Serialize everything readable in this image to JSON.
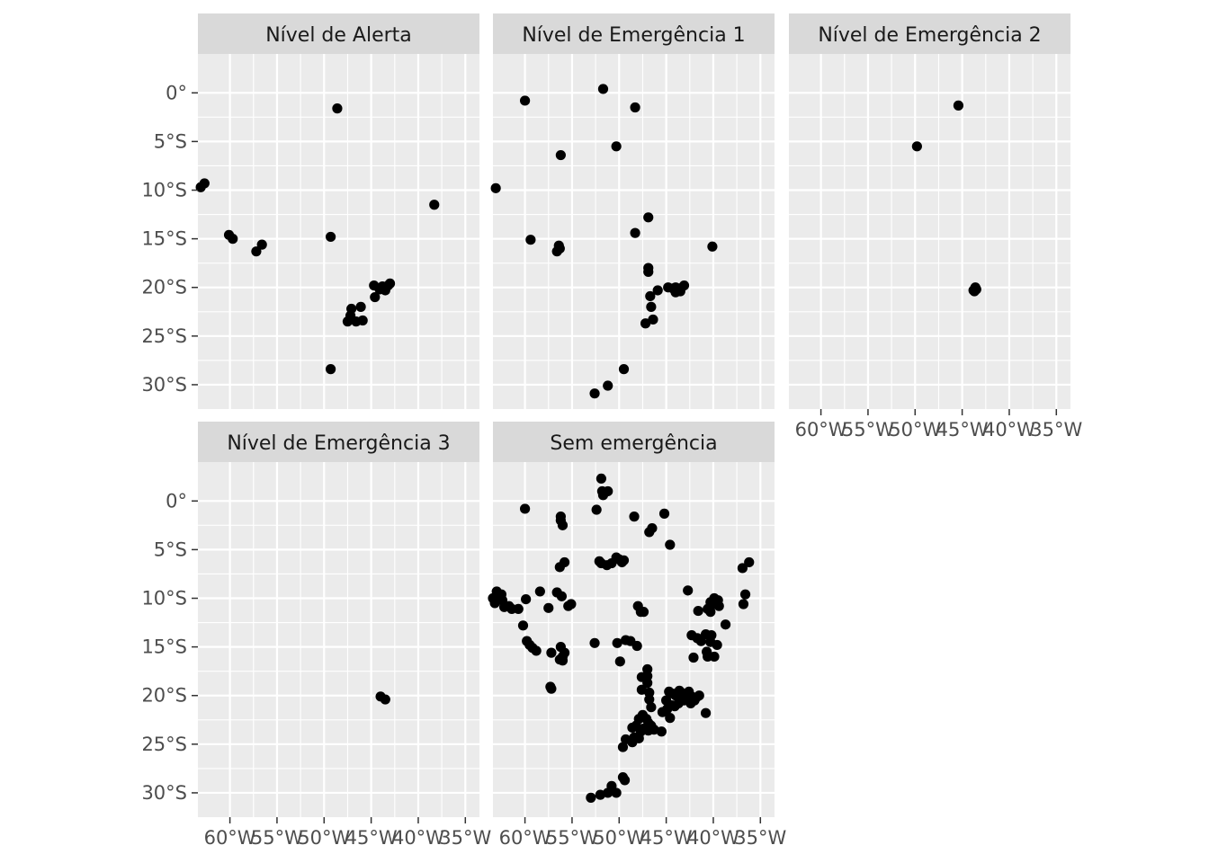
{
  "chart_data": {
    "type": "scatter",
    "facet_by": "alert level",
    "layout": "2 rows x 3 columns, shared axes",
    "x_axis": {
      "unit": "longitude",
      "range": [
        -63.4,
        -33.5
      ],
      "ticks": [
        -60,
        -55,
        -50,
        -45,
        -40,
        -35
      ],
      "tick_labels": [
        "60°W",
        "55°W",
        "50°W",
        "45°W",
        "40°W",
        "35°W"
      ]
    },
    "y_axis": {
      "unit": "latitude",
      "range": [
        -32.5,
        4.0
      ],
      "ticks": [
        0,
        -5,
        -10,
        -15,
        -20,
        -25,
        -30
      ],
      "tick_labels": [
        "0°",
        "5°S",
        "10°S",
        "15°S",
        "20°S",
        "25°S",
        "30°S"
      ]
    },
    "grid": true,
    "legend": "none",
    "colors": {
      "panel_bg": "#ebebeb",
      "grid": "#ffffff",
      "strip_bg": "#d9d9d9",
      "points": "#000000",
      "tick_text": "#4d4d4d",
      "strip_text": "#1a1a1a"
    },
    "panels": [
      {
        "label": "Nível de Alerta",
        "points": [
          [
            -48.6,
            -1.6
          ],
          [
            -63.1,
            -9.7
          ],
          [
            -62.7,
            -9.3
          ],
          [
            -60.1,
            -14.6
          ],
          [
            -59.7,
            -15.0
          ],
          [
            -57.2,
            -16.3
          ],
          [
            -56.6,
            -15.6
          ],
          [
            -49.3,
            -14.8
          ],
          [
            -38.3,
            -11.5
          ],
          [
            -47.1,
            -22.2
          ],
          [
            -47.5,
            -23.5
          ],
          [
            -46.6,
            -23.5
          ],
          [
            -45.9,
            -23.4
          ],
          [
            -46.1,
            -22.0
          ],
          [
            -47.2,
            -22.9
          ],
          [
            -44.6,
            -21.0
          ],
          [
            -44.7,
            -19.8
          ],
          [
            -44.1,
            -20.2
          ],
          [
            -43.8,
            -19.9
          ],
          [
            -43.5,
            -20.3
          ],
          [
            -43.2,
            -19.8
          ],
          [
            -43.0,
            -19.6
          ],
          [
            -49.3,
            -28.4
          ]
        ]
      },
      {
        "label": "Nível de Emergência 1",
        "points": [
          [
            -51.7,
            0.4
          ],
          [
            -60.0,
            -0.8
          ],
          [
            -48.3,
            -1.5
          ],
          [
            -50.3,
            -5.5
          ],
          [
            -56.2,
            -6.4
          ],
          [
            -63.1,
            -9.8
          ],
          [
            -59.4,
            -15.1
          ],
          [
            -56.4,
            -15.7
          ],
          [
            -56.3,
            -16.0
          ],
          [
            -56.6,
            -16.3
          ],
          [
            -46.9,
            -12.8
          ],
          [
            -48.3,
            -14.4
          ],
          [
            -40.1,
            -15.8
          ],
          [
            -46.9,
            -18.0
          ],
          [
            -46.9,
            -18.4
          ],
          [
            -45.9,
            -20.3
          ],
          [
            -44.8,
            -20.0
          ],
          [
            -44.3,
            -20.1
          ],
          [
            -44.0,
            -20.0
          ],
          [
            -43.6,
            -20.1
          ],
          [
            -43.5,
            -20.4
          ],
          [
            -43.1,
            -19.8
          ],
          [
            -44.0,
            -20.5
          ],
          [
            -46.7,
            -20.9
          ],
          [
            -46.6,
            -22.0
          ],
          [
            -46.4,
            -23.3
          ],
          [
            -47.2,
            -23.7
          ],
          [
            -49.5,
            -28.4
          ],
          [
            -51.2,
            -30.1
          ],
          [
            -52.6,
            -30.9
          ]
        ]
      },
      {
        "label": "Nível de Emergência 2",
        "points": [
          [
            -45.4,
            -1.3
          ],
          [
            -49.8,
            -5.5
          ],
          [
            -43.6,
            -20.0
          ],
          [
            -43.8,
            -20.3
          ],
          [
            -43.5,
            -20.2
          ],
          [
            -43.7,
            -20.4
          ]
        ]
      },
      {
        "label": "Nível de Emergência 3",
        "points": [
          [
            -44.0,
            -20.1
          ],
          [
            -43.5,
            -20.4
          ]
        ]
      },
      {
        "label": "Sem emergência",
        "points": [
          [
            -51.9,
            2.3
          ],
          [
            -51.8,
            1.0
          ],
          [
            -51.2,
            1.0
          ],
          [
            -51.7,
            0.6
          ],
          [
            -60.0,
            -0.8
          ],
          [
            -56.2,
            -1.6
          ],
          [
            -56.2,
            -2.0
          ],
          [
            -56.0,
            -2.5
          ],
          [
            -52.4,
            -0.9
          ],
          [
            -48.4,
            -1.6
          ],
          [
            -45.2,
            -1.3
          ],
          [
            -46.5,
            -2.8
          ],
          [
            -46.8,
            -3.2
          ],
          [
            -44.6,
            -4.5
          ],
          [
            -36.2,
            -6.3
          ],
          [
            -36.9,
            -6.9
          ],
          [
            -52.1,
            -6.2
          ],
          [
            -51.9,
            -6.4
          ],
          [
            -51.3,
            -6.6
          ],
          [
            -50.8,
            -6.4
          ],
          [
            -50.3,
            -5.8
          ],
          [
            -50.0,
            -6.0
          ],
          [
            -49.7,
            -6.3
          ],
          [
            -49.5,
            -6.1
          ],
          [
            -56.3,
            -6.8
          ],
          [
            -55.8,
            -6.3
          ],
          [
            -63.4,
            -10.0
          ],
          [
            -63.0,
            -9.3
          ],
          [
            -62.5,
            -9.6
          ],
          [
            -63.2,
            -10.5
          ],
          [
            -62.4,
            -10.2
          ],
          [
            -62.2,
            -10.9
          ],
          [
            -61.7,
            -10.8
          ],
          [
            -61.4,
            -11.1
          ],
          [
            -60.7,
            -11.1
          ],
          [
            -59.9,
            -10.1
          ],
          [
            -58.4,
            -9.3
          ],
          [
            -56.6,
            -9.4
          ],
          [
            -56.1,
            -9.8
          ],
          [
            -55.4,
            -10.8
          ],
          [
            -55.1,
            -10.6
          ],
          [
            -60.2,
            -12.8
          ],
          [
            -59.8,
            -14.4
          ],
          [
            -59.5,
            -14.8
          ],
          [
            -59.2,
            -15.1
          ],
          [
            -58.8,
            -15.4
          ],
          [
            -57.2,
            -15.6
          ],
          [
            -57.5,
            -11.0
          ],
          [
            -57.3,
            -19.1
          ],
          [
            -57.2,
            -19.3
          ],
          [
            -56.2,
            -15.0
          ],
          [
            -55.8,
            -15.6
          ],
          [
            -56.0,
            -16.0
          ],
          [
            -56.3,
            -16.3
          ],
          [
            -56.0,
            -16.4
          ],
          [
            -52.6,
            -14.6
          ],
          [
            -48.0,
            -10.8
          ],
          [
            -47.7,
            -11.4
          ],
          [
            -47.4,
            -11.4
          ],
          [
            -48.8,
            -14.4
          ],
          [
            -49.3,
            -14.3
          ],
          [
            -50.2,
            -14.6
          ],
          [
            -48.1,
            -14.9
          ],
          [
            -49.9,
            -16.5
          ],
          [
            -47.6,
            -18.1
          ],
          [
            -47.6,
            -19.4
          ],
          [
            -47.0,
            -17.3
          ],
          [
            -47.0,
            -18.0
          ],
          [
            -47.0,
            -18.7
          ],
          [
            -46.8,
            -19.7
          ],
          [
            -46.8,
            -20.4
          ],
          [
            -45.0,
            -20.5
          ],
          [
            -44.7,
            -19.6
          ],
          [
            -44.3,
            -19.8
          ],
          [
            -44.0,
            -20.0
          ],
          [
            -43.6,
            -19.5
          ],
          [
            -43.1,
            -19.9
          ],
          [
            -42.6,
            -19.6
          ],
          [
            -42.3,
            -20.1
          ],
          [
            -42.0,
            -20.5
          ],
          [
            -41.8,
            -20.2
          ],
          [
            -41.5,
            -20.0
          ],
          [
            -43.7,
            -20.8
          ],
          [
            -44.1,
            -21.1
          ],
          [
            -44.4,
            -21.0
          ],
          [
            -44.9,
            -21.4
          ],
          [
            -45.4,
            -21.7
          ],
          [
            -44.6,
            -22.3
          ],
          [
            -42.4,
            -20.8
          ],
          [
            -43.1,
            -20.5
          ],
          [
            -43.4,
            -19.7
          ],
          [
            -47.9,
            -22.4
          ],
          [
            -47.5,
            -22.0
          ],
          [
            -47.1,
            -22.4
          ],
          [
            -46.9,
            -22.8
          ],
          [
            -46.6,
            -23.1
          ],
          [
            -46.3,
            -23.5
          ],
          [
            -46.9,
            -23.6
          ],
          [
            -47.4,
            -23.4
          ],
          [
            -47.7,
            -23.7
          ],
          [
            -48.2,
            -23.1
          ],
          [
            -48.6,
            -23.3
          ],
          [
            -47.9,
            -24.4
          ],
          [
            -48.4,
            -24.3
          ],
          [
            -48.6,
            -24.8
          ],
          [
            -49.3,
            -24.5
          ],
          [
            -49.6,
            -25.3
          ],
          [
            -45.5,
            -23.7
          ],
          [
            -46.6,
            -21.2
          ],
          [
            -42.7,
            -9.2
          ],
          [
            -41.6,
            -11.3
          ],
          [
            -40.3,
            -10.4
          ],
          [
            -39.9,
            -10.0
          ],
          [
            -39.8,
            -10.6
          ],
          [
            -39.5,
            -10.2
          ],
          [
            -39.4,
            -10.8
          ],
          [
            -40.6,
            -11.1
          ],
          [
            -40.3,
            -11.4
          ],
          [
            -38.7,
            -12.7
          ],
          [
            -36.6,
            -9.6
          ],
          [
            -36.8,
            -10.6
          ],
          [
            -42.3,
            -13.8
          ],
          [
            -41.7,
            -14.1
          ],
          [
            -41.3,
            -14.4
          ],
          [
            -40.8,
            -13.7
          ],
          [
            -40.2,
            -13.8
          ],
          [
            -39.6,
            -14.8
          ],
          [
            -40.3,
            -14.5
          ],
          [
            -40.7,
            -15.5
          ],
          [
            -39.9,
            -16.0
          ],
          [
            -40.6,
            -16.0
          ],
          [
            -42.1,
            -16.1
          ],
          [
            -40.8,
            -21.8
          ],
          [
            -49.6,
            -28.4
          ],
          [
            -49.4,
            -28.7
          ],
          [
            -51.2,
            -30.0
          ],
          [
            -52.0,
            -30.2
          ],
          [
            -50.8,
            -29.3
          ],
          [
            -53.0,
            -30.5
          ],
          [
            -50.3,
            -30.0
          ]
        ]
      }
    ]
  }
}
